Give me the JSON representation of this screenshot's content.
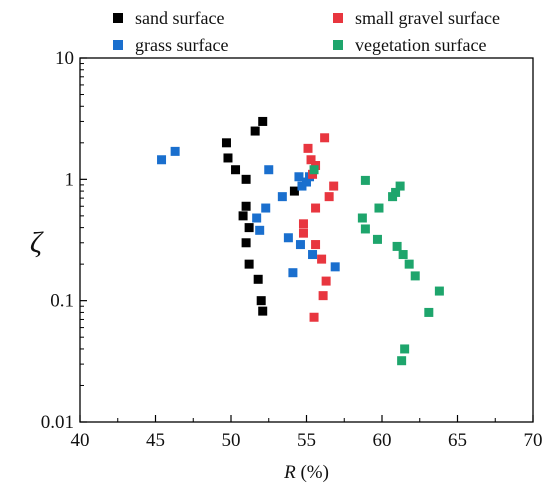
{
  "chart_data": {
    "type": "scatter",
    "xlabel_var": "R",
    "xlabel_unit": " (%)",
    "ylabel": "ζ",
    "xlim": [
      40,
      70
    ],
    "ylim": [
      0.01,
      10
    ],
    "yscale": "log",
    "grid": false,
    "legend_position": "top-outside",
    "x_ticks": [
      {
        "value": 40,
        "label": "40"
      },
      {
        "value": 45,
        "label": "45"
      },
      {
        "value": 50,
        "label": "50"
      },
      {
        "value": 55,
        "label": "55"
      },
      {
        "value": 60,
        "label": "60"
      },
      {
        "value": 65,
        "label": "65"
      },
      {
        "value": 70,
        "label": "70"
      }
    ],
    "y_ticks": [
      {
        "value": 0.01,
        "label": "0.01"
      },
      {
        "value": 0.1,
        "label": "0.1"
      },
      {
        "value": 1,
        "label": "1"
      },
      {
        "value": 10,
        "label": "10"
      }
    ],
    "series": [
      {
        "name": "sand surface",
        "color": "#000000",
        "points": [
          [
            52.1,
            3.0
          ],
          [
            51.6,
            2.5
          ],
          [
            49.7,
            2.0
          ],
          [
            49.8,
            1.5
          ],
          [
            50.3,
            1.2
          ],
          [
            51.0,
            1.0
          ],
          [
            54.2,
            0.8
          ],
          [
            51.0,
            0.6
          ],
          [
            50.8,
            0.5
          ],
          [
            51.2,
            0.4
          ],
          [
            51.0,
            0.3
          ],
          [
            51.2,
            0.2
          ],
          [
            51.8,
            0.15
          ],
          [
            52.0,
            0.1
          ],
          [
            52.1,
            0.082
          ]
        ]
      },
      {
        "name": "grass surface",
        "color": "#1a6fce",
        "points": [
          [
            45.4,
            1.45
          ],
          [
            46.3,
            1.7
          ],
          [
            52.5,
            1.2
          ],
          [
            55.2,
            1.05
          ],
          [
            54.5,
            1.05
          ],
          [
            55.0,
            0.95
          ],
          [
            54.7,
            0.88
          ],
          [
            53.4,
            0.72
          ],
          [
            52.3,
            0.58
          ],
          [
            51.7,
            0.48
          ],
          [
            51.9,
            0.38
          ],
          [
            53.8,
            0.33
          ],
          [
            54.6,
            0.29
          ],
          [
            55.4,
            0.24
          ],
          [
            56.9,
            0.19
          ],
          [
            54.1,
            0.17
          ]
        ]
      },
      {
        "name": "small gravel surface",
        "color": "#e8363f",
        "points": [
          [
            56.2,
            2.2
          ],
          [
            55.1,
            1.8
          ],
          [
            55.3,
            1.45
          ],
          [
            55.6,
            1.3
          ],
          [
            55.4,
            1.1
          ],
          [
            56.8,
            0.88
          ],
          [
            56.5,
            0.72
          ],
          [
            55.6,
            0.58
          ],
          [
            54.8,
            0.43
          ],
          [
            54.8,
            0.36
          ],
          [
            55.6,
            0.29
          ],
          [
            56.0,
            0.22
          ],
          [
            56.3,
            0.145
          ],
          [
            56.1,
            0.11
          ],
          [
            55.5,
            0.073
          ]
        ]
      },
      {
        "name": "vegetation surface",
        "color": "#1ea56c",
        "points": [
          [
            55.5,
            1.2
          ],
          [
            58.9,
            0.98
          ],
          [
            61.2,
            0.88
          ],
          [
            60.9,
            0.78
          ],
          [
            60.7,
            0.72
          ],
          [
            59.8,
            0.58
          ],
          [
            58.7,
            0.48
          ],
          [
            58.9,
            0.39
          ],
          [
            59.7,
            0.32
          ],
          [
            61.0,
            0.28
          ],
          [
            61.4,
            0.24
          ],
          [
            61.8,
            0.2
          ],
          [
            62.2,
            0.16
          ],
          [
            63.8,
            0.12
          ],
          [
            63.1,
            0.08
          ],
          [
            61.5,
            0.04
          ],
          [
            61.3,
            0.032
          ]
        ]
      }
    ]
  }
}
